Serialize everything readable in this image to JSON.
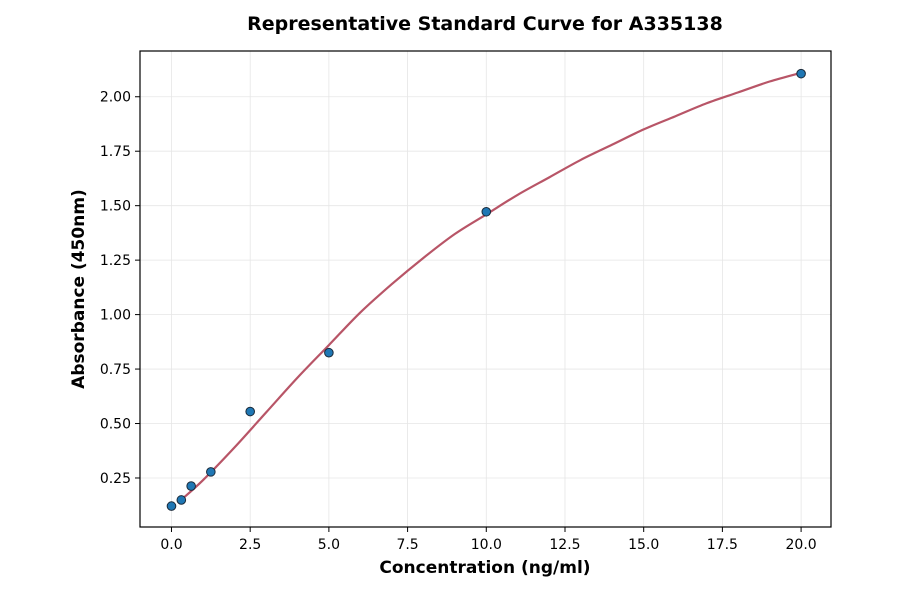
{
  "chart_data": {
    "type": "scatter",
    "title": "Representative Standard Curve for A335138",
    "xlabel": "Concentration (ng/ml)",
    "ylabel": "Absorbance (450nm)",
    "xlim": [
      -1.0,
      20.95
    ],
    "ylim": [
      0.025,
      2.21
    ],
    "xticks": [
      "0.0",
      "2.5",
      "5.0",
      "7.5",
      "10.0",
      "12.5",
      "15.0",
      "17.5",
      "20.0"
    ],
    "yticks": [
      "0.25",
      "0.50",
      "0.75",
      "1.00",
      "1.25",
      "1.50",
      "1.75",
      "2.00"
    ],
    "grid": true,
    "points": {
      "x": [
        0,
        0.3125,
        0.625,
        1.25,
        2.5,
        5,
        10,
        20
      ],
      "y": [
        0.121,
        0.149,
        0.213,
        0.278,
        0.555,
        0.825,
        1.472,
        2.106
      ],
      "color": "#1f77b4"
    },
    "fit_curve": {
      "x": [
        0.3125,
        1,
        2,
        3,
        4,
        5,
        6,
        7,
        8,
        9,
        10,
        11,
        12,
        13,
        14,
        15,
        16,
        17,
        18,
        19,
        20
      ],
      "y": [
        0.15,
        0.24,
        0.39,
        0.55,
        0.71,
        0.86,
        1.01,
        1.14,
        1.26,
        1.37,
        1.46,
        1.55,
        1.63,
        1.71,
        1.78,
        1.85,
        1.91,
        1.97,
        2.02,
        2.07,
        2.11
      ],
      "color": "#b85567"
    }
  }
}
